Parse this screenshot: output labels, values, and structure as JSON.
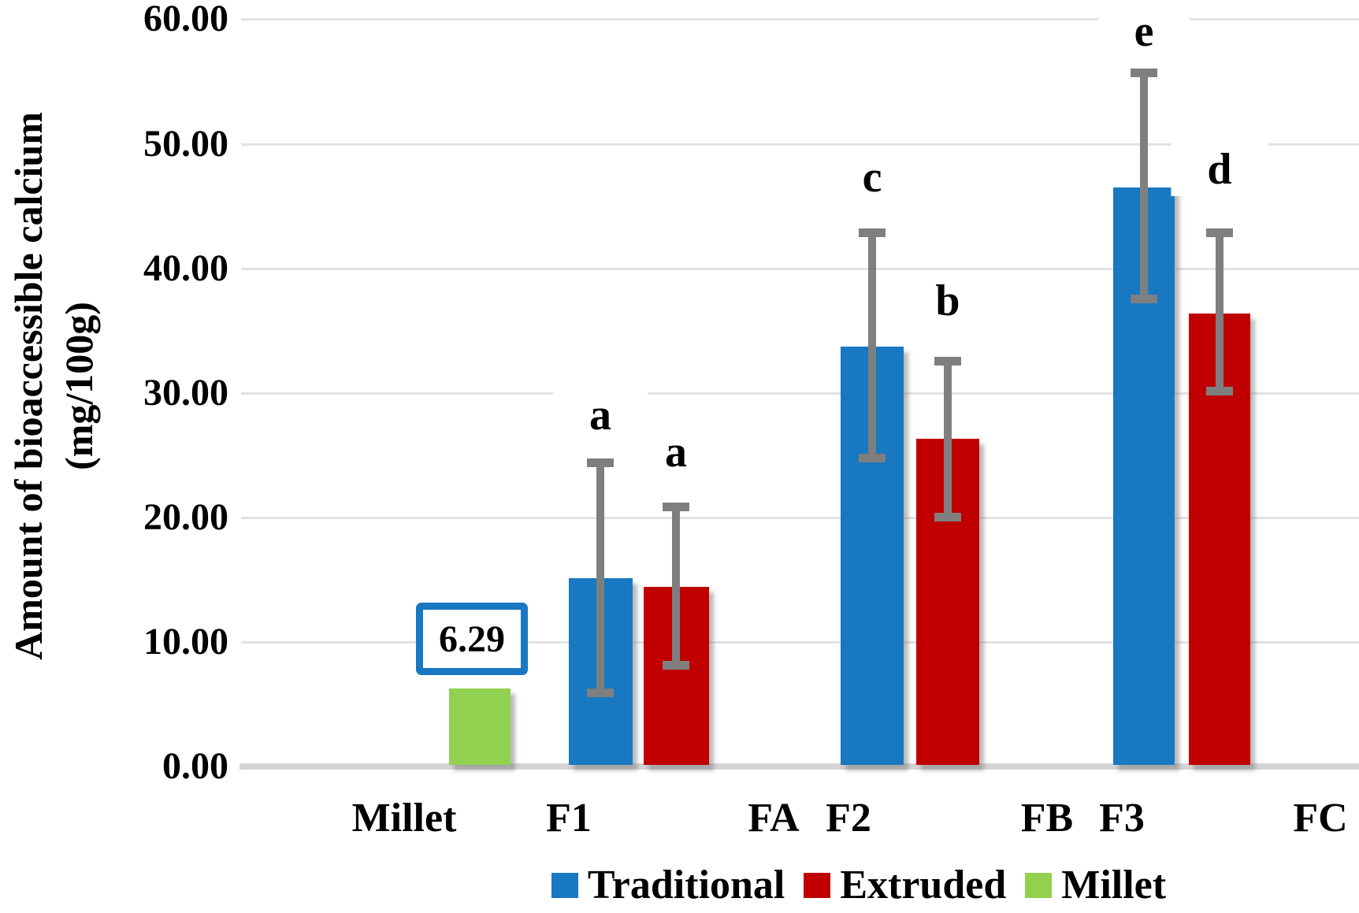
{
  "colors": {
    "traditional": "#1878C2",
    "extruded": "#C00000",
    "millet": "#92D050",
    "error_bar": "#7F7F7F",
    "gridline": "#E2E2E2",
    "axis_line": "#D4D4D4",
    "callout_border": "#1878C2",
    "text": "#000000"
  },
  "y_axis": {
    "title_line1": "Amount of bioaccessible calcium",
    "title_line2": "(mg/100g)",
    "ticks": [
      {
        "label": "0.00",
        "value": 0
      },
      {
        "label": "10.00",
        "value": 10
      },
      {
        "label": "20.00",
        "value": 20
      },
      {
        "label": "30.00",
        "value": 30
      },
      {
        "label": "40.00",
        "value": 40
      },
      {
        "label": "50.00",
        "value": 50
      },
      {
        "label": "60.00",
        "value": 60
      }
    ]
  },
  "x_axis": {
    "labels": [
      "Millet",
      "F1",
      "FA",
      "F2",
      "FB",
      "F3",
      "FC"
    ]
  },
  "legend": {
    "items": [
      {
        "id": "traditional",
        "label": "Traditional",
        "color_key": "traditional"
      },
      {
        "id": "extruded",
        "label": "Extruded",
        "color_key": "extruded"
      },
      {
        "id": "millet",
        "label": "Millet",
        "color_key": "millet"
      }
    ]
  },
  "callout": {
    "text": "6.29"
  },
  "chart_data": {
    "type": "bar",
    "title": "",
    "xlabel": "",
    "ylabel": "Amount of bioaccessible calcium (mg/100g)",
    "ylim": [
      0,
      60
    ],
    "ytick_step": 10,
    "ytick_format": "0.00",
    "grid": "horizontal",
    "legend_position": "bottom",
    "x_category_labels": [
      "Millet",
      "F1",
      "FA",
      "F2",
      "FB",
      "F3",
      "FC"
    ],
    "notes": "Green Millet bar labeled 6.29 in a blue callout box; grouped blue/red bars with gray error bars and significance letters a,a,c,b,e,d",
    "series": [
      {
        "name": "Millet",
        "color_key": "millet",
        "points": [
          {
            "group": "Millet",
            "value": 6.29,
            "value_label": "6.29"
          }
        ]
      },
      {
        "name": "Traditional",
        "color_key": "traditional",
        "points": [
          {
            "group": "F1",
            "value": 15.1,
            "error_low": 5.9,
            "error_high": 24.4,
            "sig_letter": "a"
          },
          {
            "group": "F2",
            "value": 33.7,
            "error_low": 24.7,
            "error_high": 42.9,
            "sig_letter": "c"
          },
          {
            "group": "F3",
            "value": 46.5,
            "error_low": 37.5,
            "error_high": 55.7,
            "sig_letter": "e"
          }
        ]
      },
      {
        "name": "Extruded",
        "color_key": "extruded",
        "points": [
          {
            "group": "F1",
            "value": 14.4,
            "error_low": 8.1,
            "error_high": 20.9,
            "sig_letter": "a"
          },
          {
            "group": "F2",
            "value": 26.3,
            "error_low": 20.0,
            "error_high": 32.6,
            "sig_letter": "b"
          },
          {
            "group": "F3",
            "value": 36.4,
            "error_low": 30.1,
            "error_high": 42.9,
            "sig_letter": "d"
          }
        ]
      }
    ]
  }
}
